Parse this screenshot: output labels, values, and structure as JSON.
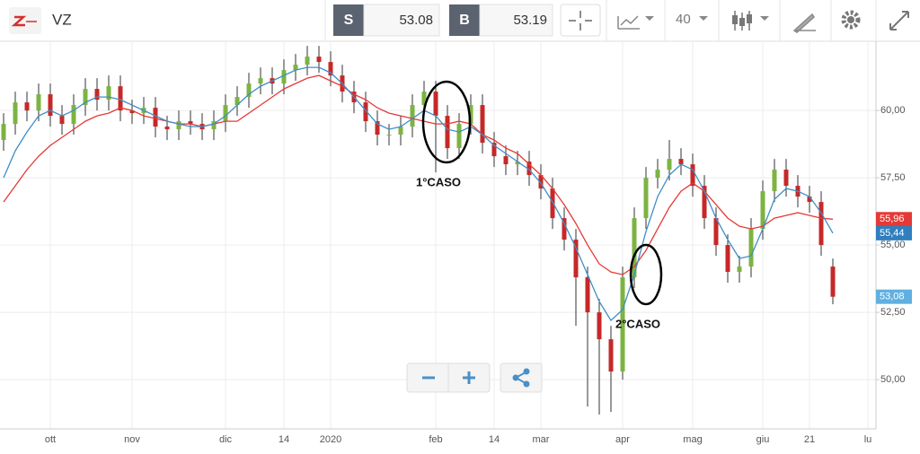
{
  "toolbar": {
    "symbol": "VZ",
    "sell_label": "S",
    "sell": 53.08,
    "buy_label": "B",
    "buy": 53.19,
    "period": 40
  },
  "chart_data": {
    "type": "candlestick",
    "categories": [
      null,
      null,
      null,
      null,
      "ott",
      null,
      null,
      null,
      null,
      null,
      null,
      "nov",
      null,
      null,
      null,
      null,
      null,
      null,
      null,
      "dic",
      null,
      null,
      null,
      null,
      "14",
      null,
      null,
      null,
      "2020",
      null,
      null,
      null,
      null,
      null,
      null,
      null,
      null,
      "feb",
      null,
      null,
      null,
      null,
      "14",
      null,
      null,
      null,
      "mar",
      null,
      null,
      null,
      null,
      null,
      null,
      "apr",
      null,
      null,
      null,
      null,
      null,
      "mag",
      null,
      null,
      null,
      null,
      null,
      "giu",
      null,
      null,
      null,
      "21",
      null,
      null,
      null,
      null,
      "lu"
    ],
    "candles": {
      "up_color": "#7cb342",
      "down_color": "#c62828",
      "open": [
        58.9,
        59.5,
        60.3,
        60.0,
        60.6,
        59.8,
        59.5,
        60.2,
        60.8,
        60.4,
        60.9,
        60.0,
        59.9,
        60.1,
        59.4,
        59.3,
        59.6,
        59.5,
        59.3,
        59.6,
        60.2,
        60.5,
        61.0,
        61.2,
        61.0,
        61.5,
        61.7,
        62.0,
        61.8,
        61.3,
        60.7,
        60.3,
        59.6,
        59.1,
        59.1,
        59.4,
        60.2,
        60.7,
        59.8,
        58.6,
        59.5,
        60.2,
        58.8,
        58.3,
        58.0,
        58.1,
        57.6,
        57.1,
        56.0,
        55.2,
        53.8,
        52.5,
        51.5,
        50.3,
        53.8,
        56.0,
        57.5,
        57.8,
        58.2,
        58.0,
        57.2,
        56.0,
        55.0,
        54.0,
        54.2,
        55.6,
        57.0,
        57.8,
        57.2,
        56.8,
        56.6,
        54.2,
        null,
        null,
        null
      ],
      "high": [
        59.9,
        60.7,
        60.7,
        61.0,
        61.0,
        60.2,
        60.6,
        61.2,
        61.2,
        61.3,
        61.3,
        60.4,
        60.5,
        60.5,
        59.8,
        60.0,
        60.0,
        59.9,
        60.0,
        60.6,
        60.9,
        61.4,
        61.6,
        61.6,
        61.9,
        62.1,
        62.4,
        62.4,
        62.2,
        61.7,
        61.1,
        60.7,
        60.0,
        59.5,
        59.8,
        60.6,
        61.1,
        61.1,
        60.2,
        59.9,
        60.6,
        60.6,
        59.2,
        58.7,
        58.5,
        58.5,
        58.0,
        57.5,
        56.4,
        55.6,
        54.2,
        53.0,
        52.0,
        54.2,
        56.4,
        57.9,
        58.2,
        58.9,
        58.6,
        58.4,
        57.6,
        56.4,
        55.4,
        54.6,
        56.0,
        57.4,
        58.2,
        58.2,
        57.6,
        57.2,
        57.0,
        54.5,
        null,
        null,
        null
      ],
      "low": [
        58.5,
        59.1,
        59.6,
        59.6,
        59.4,
        59.1,
        59.1,
        59.8,
        60.0,
        60.0,
        59.6,
        59.5,
        59.5,
        59.0,
        58.9,
        58.9,
        59.1,
        58.9,
        58.9,
        59.2,
        59.8,
        60.1,
        60.6,
        60.6,
        60.6,
        61.1,
        61.3,
        61.4,
        60.9,
        60.3,
        59.9,
        59.2,
        58.7,
        58.7,
        58.7,
        59.0,
        59.8,
        57.7,
        58.2,
        58.2,
        59.1,
        58.4,
        57.9,
        57.6,
        57.6,
        57.2,
        56.7,
        55.6,
        54.8,
        52.0,
        49.0,
        48.7,
        48.8,
        50.0,
        53.4,
        55.6,
        57.1,
        57.4,
        57.6,
        56.8,
        55.6,
        54.6,
        53.6,
        53.6,
        53.8,
        55.2,
        56.6,
        56.8,
        56.4,
        56.2,
        54.6,
        52.8,
        null,
        null,
        null
      ],
      "close": [
        59.5,
        60.3,
        60.0,
        60.6,
        59.8,
        59.5,
        60.2,
        60.8,
        60.4,
        60.9,
        60.0,
        59.9,
        60.1,
        59.4,
        59.3,
        59.6,
        59.5,
        59.3,
        59.6,
        60.2,
        60.5,
        61.0,
        61.2,
        61.0,
        61.5,
        61.7,
        62.0,
        61.8,
        61.3,
        60.7,
        60.3,
        59.6,
        59.1,
        59.1,
        59.4,
        60.2,
        60.7,
        59.8,
        58.6,
        59.5,
        60.2,
        58.8,
        58.3,
        58.0,
        58.1,
        57.6,
        57.1,
        56.0,
        55.2,
        53.8,
        52.5,
        51.5,
        50.3,
        53.8,
        56.0,
        57.5,
        57.8,
        58.2,
        58.0,
        57.2,
        56.0,
        55.0,
        54.0,
        54.2,
        55.6,
        57.0,
        57.8,
        57.2,
        56.8,
        56.6,
        55.0,
        53.08,
        null,
        null,
        null
      ]
    },
    "lines": [
      {
        "color": "#e53935",
        "values": [
          56.6,
          57.2,
          57.8,
          58.3,
          58.7,
          59.0,
          59.3,
          59.6,
          59.8,
          59.9,
          60.1,
          60.0,
          59.8,
          59.7,
          59.6,
          59.5,
          59.5,
          59.4,
          59.5,
          59.6,
          59.6,
          59.9,
          60.2,
          60.5,
          60.8,
          61.0,
          61.2,
          61.3,
          61.1,
          60.9,
          60.6,
          60.4,
          60.1,
          59.9,
          59.8,
          59.7,
          59.6,
          59.5,
          59.5,
          59.6,
          59.5,
          59.1,
          58.9,
          58.6,
          58.4,
          58.0,
          57.6,
          57.1,
          56.5,
          55.8,
          55.0,
          54.3,
          54.0,
          53.9,
          54.2,
          54.8,
          55.6,
          56.4,
          57.0,
          57.3,
          57.0,
          56.5,
          56.0,
          55.7,
          55.6,
          55.7,
          56.0,
          56.1,
          56.2,
          56.1,
          56.0,
          55.96,
          null,
          null,
          null
        ]
      },
      {
        "color": "#3d8fc6",
        "values": [
          57.5,
          58.5,
          59.2,
          59.8,
          60.0,
          59.8,
          60.0,
          60.3,
          60.5,
          60.5,
          60.4,
          60.2,
          60.0,
          59.8,
          59.6,
          59.5,
          59.4,
          59.4,
          59.5,
          59.8,
          60.2,
          60.6,
          60.9,
          61.1,
          61.3,
          61.5,
          61.6,
          61.6,
          61.4,
          61.0,
          60.5,
          60.0,
          59.5,
          59.3,
          59.4,
          59.7,
          60.0,
          59.8,
          59.3,
          59.2,
          59.4,
          59.1,
          58.7,
          58.4,
          58.1,
          57.8,
          57.3,
          56.6,
          55.8,
          54.9,
          53.9,
          52.9,
          52.2,
          52.6,
          53.9,
          55.5,
          56.8,
          57.6,
          58.0,
          57.8,
          57.0,
          56.0,
          55.2,
          54.5,
          54.6,
          55.6,
          56.7,
          57.1,
          57.0,
          56.8,
          56.2,
          55.44,
          null,
          null,
          null
        ]
      }
    ],
    "price_markers": [
      {
        "value": 55.96,
        "label": "55,96",
        "color": "#e53935"
      },
      {
        "value": 55.44,
        "label": "55,44",
        "color": "#2f7fc0"
      },
      {
        "value": 53.08,
        "label": "53,08",
        "color": "#5fb0e0"
      }
    ],
    "annotations": [
      "1°CASO",
      "2°CASO"
    ],
    "ylim": [
      48.17,
      62.57
    ],
    "yticks": [
      {
        "value": 50,
        "label": "50,00"
      },
      {
        "value": 52.5,
        "label": "52,50"
      },
      {
        "value": 55,
        "label": "55,00"
      },
      {
        "value": 57.5,
        "label": "57,50"
      },
      {
        "value": 60,
        "label": "60,00"
      }
    ],
    "grid": true
  }
}
